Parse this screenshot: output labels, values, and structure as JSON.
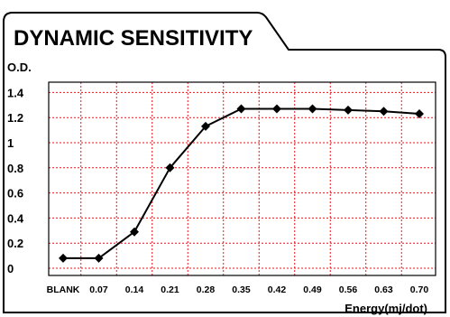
{
  "chart_data": {
    "type": "line",
    "title": "DYNAMIC SENSITIVITY",
    "ylabel": "O.D.",
    "xlabel": "Energy(mj/dot)",
    "categories": [
      "BLANK",
      "0.07",
      "0.14",
      "0.21",
      "0.28",
      "0.35",
      "0.42",
      "0.49",
      "0.56",
      "0.63",
      "0.70"
    ],
    "yticks": [
      "0",
      "0.2",
      "0.4",
      "0.6",
      "0.8",
      "1",
      "1.2",
      "1.4"
    ],
    "ylim": [
      0,
      1.45
    ],
    "series": [
      {
        "values": [
          0.08,
          0.08,
          0.29,
          0.8,
          1.13,
          1.27,
          1.27,
          1.27,
          1.26,
          1.25,
          1.23
        ]
      }
    ],
    "grid": true,
    "colors": {
      "grid": "#e8141a",
      "line": "#000000",
      "frame": "#000000"
    }
  }
}
